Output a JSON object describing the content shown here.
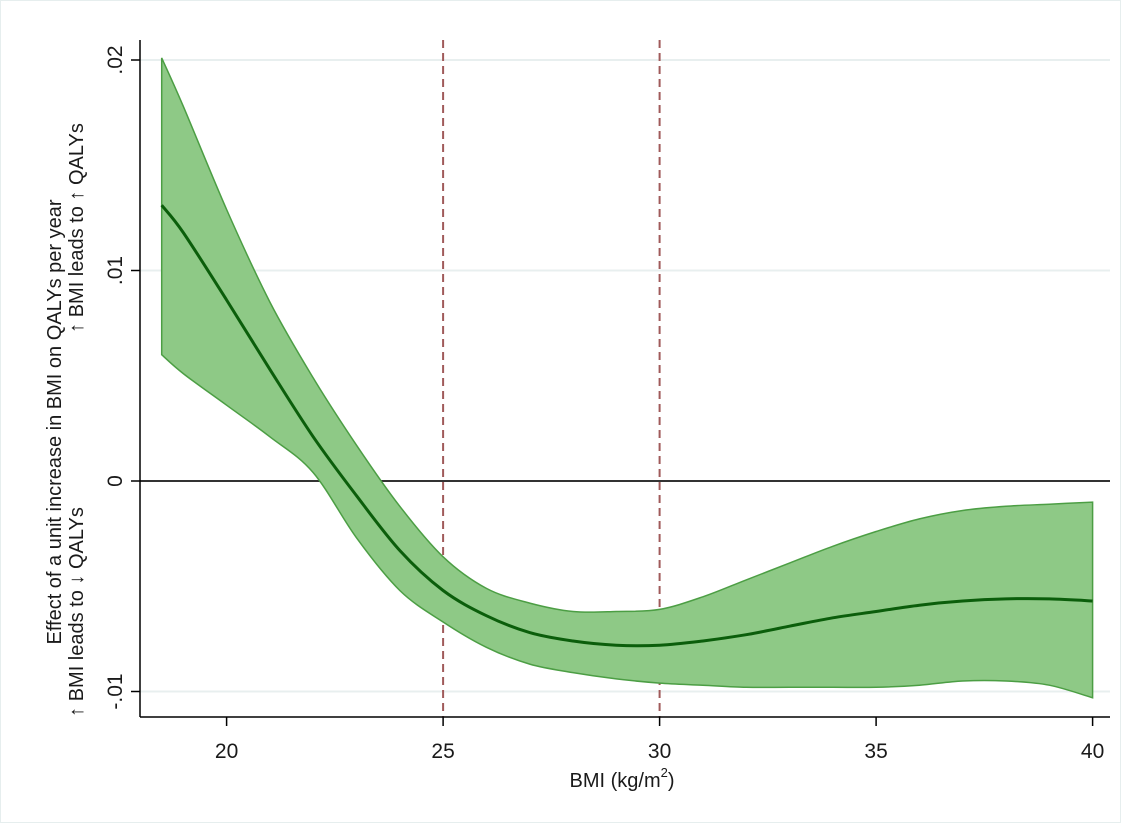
{
  "chart_data": {
    "type": "area",
    "title": "",
    "xlabel": "BMI (kg/m",
    "xlabel_sup": "2",
    "xlabel_close": ")",
    "ylabel": "Effect of a unit increase in BMI on QALYs per year",
    "ylabel_up": "↑ BMI leads to ↑ QALYs",
    "ylabel_down": "↑ BMI leads to ↓ QALYs",
    "xlim": [
      18,
      40.8
    ],
    "ylim": [
      -0.011,
      0.021
    ],
    "xticks": [
      20,
      25,
      30,
      35,
      40
    ],
    "xtick_labels": [
      "20",
      "25",
      "30",
      "35",
      "40"
    ],
    "yticks": [
      -0.01,
      0,
      0.01,
      0.02
    ],
    "ytick_labels": [
      "-.01",
      "0",
      ".01",
      ".02"
    ],
    "grid": "horizontal",
    "reference_lines": {
      "horizontal": [
        0
      ],
      "vertical": [
        25,
        30
      ]
    },
    "colors": {
      "estimate_line": "#0b5e0b",
      "ci_fill": "#8ec986",
      "ci_edge": "#4c9e44",
      "ref_vertical": "#a05a5a",
      "ref_horizontal": "#333333",
      "grid": "#e8efef"
    },
    "series": [
      {
        "x": [
          18.5,
          19,
          20,
          21,
          22,
          23,
          24,
          25,
          26,
          27,
          28,
          29,
          30,
          31,
          32,
          33,
          34,
          35,
          36,
          37,
          38,
          39,
          40
        ],
        "estimate": [
          0.0131,
          0.0118,
          0.0086,
          0.0053,
          0.0021,
          -0.0007,
          -0.0033,
          -0.0052,
          -0.0064,
          -0.0072,
          -0.0076,
          -0.0078,
          -0.0078,
          -0.0076,
          -0.0073,
          -0.0069,
          -0.0065,
          -0.0062,
          -0.0059,
          -0.0057,
          -0.0056,
          -0.0056,
          -0.0057
        ],
        "upper": [
          0.0201,
          0.0178,
          0.0129,
          0.0085,
          0.0049,
          0.0017,
          -0.0012,
          -0.0036,
          -0.0051,
          -0.0058,
          -0.0062,
          -0.0062,
          -0.0061,
          -0.0055,
          -0.0047,
          -0.0039,
          -0.0031,
          -0.0024,
          -0.0018,
          -0.0014,
          -0.0012,
          -0.0011,
          -0.001
        ],
        "lower": [
          0.006,
          0.0051,
          0.0036,
          0.0021,
          0.0004,
          -0.0027,
          -0.0052,
          -0.0067,
          -0.0079,
          -0.0087,
          -0.0091,
          -0.0094,
          -0.0096,
          -0.0097,
          -0.0098,
          -0.0098,
          -0.0098,
          -0.0098,
          -0.0097,
          -0.0095,
          -0.0095,
          -0.0097,
          -0.0103
        ]
      }
    ]
  }
}
